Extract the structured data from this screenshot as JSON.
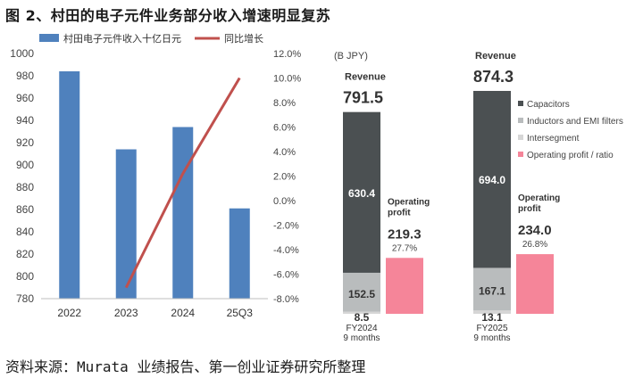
{
  "figure": {
    "title": "图 2、村田的电子元件业务部分收入增速明显复苏",
    "source": "资料来源：Murata 业绩报告、第一创业证券研究所整理"
  },
  "colors": {
    "bar_blue": "#4f81bd",
    "line_red": "#c0504d",
    "capacitors": "#4b5052",
    "inductors": "#b9bcbd",
    "intersegment": "#d6d6d6",
    "operating_profit": "#f58599"
  },
  "chart_data": [
    {
      "type": "bar",
      "title": "",
      "categories": [
        "2022",
        "2023",
        "2024",
        "25Q3"
      ],
      "series": [
        {
          "name": "村田电子元件收入十亿日元",
          "type": "bar",
          "axis": "left",
          "values": [
            984,
            914,
            934,
            861
          ]
        },
        {
          "name": "同比增长",
          "type": "line",
          "axis": "right",
          "values": [
            null,
            -7.1,
            2.2,
            10.0
          ]
        }
      ],
      "ylim": [
        780,
        1000
      ],
      "yticks": [
        "780",
        "800",
        "820",
        "840",
        "860",
        "880",
        "900",
        "920",
        "940",
        "960",
        "980",
        "1000"
      ],
      "y2lim": [
        -8,
        12
      ],
      "y2ticks": [
        "12.0%",
        "10.0%",
        "8.0%",
        "6.0%",
        "4.0%",
        "2.0%",
        "0.0%",
        "-2.0%",
        "-4.0%",
        "-6.0%",
        "-8.0%"
      ],
      "legend": "top"
    },
    {
      "type": "bar",
      "unit_label": "(B JPY)",
      "categories": [
        "FY2024\n9 months",
        "FY2025\n9 months"
      ],
      "revenue_label": "Revenue",
      "revenue_totals": [
        "791.5",
        "874.3"
      ],
      "series": [
        {
          "name": "Capacitors",
          "values": [
            630.4,
            694.0
          ]
        },
        {
          "name": "Inductors and EMI filters",
          "values": [
            152.5,
            167.1
          ]
        },
        {
          "name": "Intersegment",
          "values": [
            8.5,
            13.1
          ]
        },
        {
          "name": "Operating profit / ratio",
          "values": [
            219.3,
            234.0
          ],
          "ratios": [
            "27.7%",
            "26.8%"
          ]
        }
      ],
      "op_profit_label": "Operating\nprofit",
      "legend": "right"
    }
  ]
}
